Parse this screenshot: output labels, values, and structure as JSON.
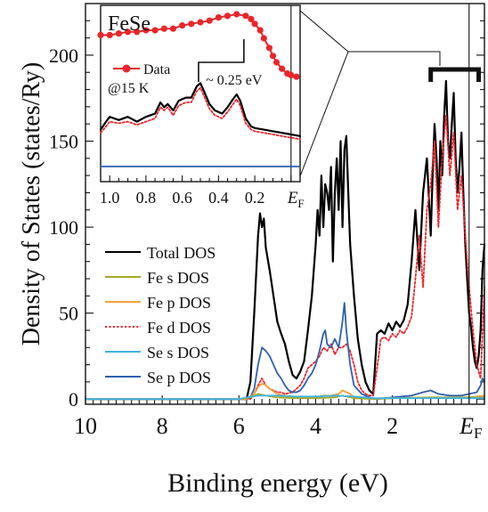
{
  "chart_data": [
    {
      "type": "line",
      "xlabel": "Binding energy (eV)",
      "ylabel": "Density of States (states/Ry)",
      "xlim": [
        10,
        -0.4
      ],
      "ylim": [
        -3,
        230
      ],
      "x_reversed": true,
      "x_ticks": [
        10,
        8,
        6,
        4,
        2
      ],
      "y_ticks": [
        0,
        50,
        100,
        150,
        200
      ],
      "fermi_label": "E",
      "fermi_sub": "F",
      "fermi_x": 0,
      "fermi_bar_range": [
        1.0,
        -0.25
      ],
      "legend": [
        {
          "label": "Total DOS",
          "color": "#000000",
          "style": "solid"
        },
        {
          "label": "Fe s DOS",
          "color": "#a6a829",
          "style": "solid"
        },
        {
          "label": "Fe p DOS",
          "color": "#f2a13a",
          "style": "solid"
        },
        {
          "label": "Fe d DOS",
          "color": "#e8262c",
          "style": "dotted"
        },
        {
          "label": "Se s DOS",
          "color": "#3fb4e2",
          "style": "solid"
        },
        {
          "label": "Se p DOS",
          "color": "#2e5fae",
          "style": "solid"
        }
      ],
      "series": [
        {
          "name": "Total DOS",
          "color": "#000000",
          "style": "solid",
          "x": [
            10,
            6.0,
            5.9,
            5.8,
            5.7,
            5.6,
            5.5,
            5.45,
            5.4,
            5.35,
            5.3,
            5.2,
            5.1,
            5.0,
            4.9,
            4.8,
            4.7,
            4.6,
            4.5,
            4.4,
            4.3,
            4.2,
            4.1,
            4.0,
            3.95,
            3.9,
            3.85,
            3.8,
            3.75,
            3.7,
            3.65,
            3.6,
            3.55,
            3.5,
            3.45,
            3.4,
            3.35,
            3.3,
            3.25,
            3.2,
            3.15,
            3.1,
            3.0,
            2.9,
            2.8,
            2.7,
            2.6,
            2.5,
            2.45,
            2.4,
            2.3,
            2.2,
            2.1,
            2.0,
            1.9,
            1.8,
            1.7,
            1.6,
            1.5,
            1.4,
            1.3,
            1.2,
            1.1,
            1.0,
            0.95,
            0.9,
            0.85,
            0.8,
            0.75,
            0.7,
            0.65,
            0.6,
            0.55,
            0.5,
            0.45,
            0.4,
            0.35,
            0.3,
            0.25,
            0.2,
            0.15,
            0.1,
            0.05,
            0.0,
            -0.05,
            -0.1,
            -0.15,
            -0.2,
            -0.25,
            -0.3,
            -0.35,
            -0.4
          ],
          "y": [
            0,
            0,
            0,
            0,
            10,
            50,
            95,
            108,
            100,
            105,
            88,
            75,
            60,
            45,
            38,
            32,
            22,
            14,
            12,
            16,
            22,
            40,
            60,
            90,
            110,
            95,
            130,
            100,
            125,
            120,
            110,
            135,
            80,
            120,
            140,
            110,
            150,
            100,
            145,
            153,
            120,
            90,
            60,
            35,
            20,
            10,
            5,
            3,
            20,
            38,
            40,
            38,
            44,
            40,
            45,
            42,
            46,
            55,
            80,
            110,
            75,
            120,
            140,
            95,
            130,
            160,
            140,
            110,
            150,
            130,
            165,
            185,
            150,
            140,
            160,
            178,
            140,
            120,
            135,
            155,
            120,
            90,
            70,
            50,
            42,
            30,
            22,
            18,
            25,
            40,
            75,
            90
          ]
        },
        {
          "name": "Fe d DOS",
          "color": "#e8262c",
          "style": "dotted",
          "x": [
            10,
            6.0,
            5.7,
            5.6,
            5.5,
            5.4,
            5.3,
            5.2,
            5.0,
            4.9,
            4.8,
            4.6,
            4.4,
            4.3,
            4.2,
            4.1,
            4.0,
            3.9,
            3.8,
            3.7,
            3.6,
            3.5,
            3.4,
            3.3,
            3.2,
            3.1,
            3.0,
            2.9,
            2.8,
            2.7,
            2.6,
            2.5,
            2.4,
            2.3,
            2.2,
            2.1,
            2.0,
            1.9,
            1.8,
            1.7,
            1.6,
            1.5,
            1.4,
            1.3,
            1.2,
            1.1,
            1.0,
            0.9,
            0.8,
            0.7,
            0.6,
            0.5,
            0.4,
            0.3,
            0.2,
            0.1,
            0.0,
            -0.1,
            -0.2,
            -0.3,
            -0.4
          ],
          "y": [
            0,
            0,
            0,
            3,
            8,
            12,
            8,
            6,
            4,
            4,
            3,
            4,
            8,
            12,
            18,
            20,
            22,
            25,
            30,
            28,
            32,
            26,
            30,
            30,
            32,
            28,
            20,
            10,
            5,
            3,
            2,
            2,
            18,
            35,
            36,
            34,
            38,
            36,
            40,
            38,
            42,
            48,
            70,
            95,
            65,
            110,
            125,
            150,
            100,
            140,
            165,
            130,
            155,
            110,
            130,
            95,
            65,
            40,
            20,
            12,
            65
          ]
        },
        {
          "name": "Se p DOS",
          "color": "#2e5fae",
          "style": "solid",
          "x": [
            10,
            6.0,
            5.8,
            5.7,
            5.6,
            5.5,
            5.4,
            5.3,
            5.2,
            5.1,
            5.0,
            4.9,
            4.8,
            4.7,
            4.6,
            4.5,
            4.4,
            4.3,
            4.2,
            4.1,
            4.0,
            3.9,
            3.8,
            3.75,
            3.7,
            3.6,
            3.5,
            3.4,
            3.3,
            3.25,
            3.2,
            3.1,
            3.0,
            2.8,
            2.6,
            2.4,
            2.0,
            1.5,
            1.2,
            1.0,
            0.8,
            0.5,
            0.2,
            0.0,
            -0.2,
            -0.3,
            -0.35,
            -0.4
          ],
          "y": [
            0,
            0,
            0,
            1,
            6,
            20,
            30,
            28,
            25,
            20,
            15,
            12,
            8,
            5,
            4,
            4,
            5,
            8,
            12,
            15,
            20,
            28,
            38,
            40,
            32,
            30,
            35,
            30,
            45,
            56,
            40,
            20,
            8,
            3,
            1,
            0,
            1,
            2,
            4,
            5,
            3,
            2,
            2,
            3,
            4,
            8,
            12,
            10
          ]
        },
        {
          "name": "Fe p DOS",
          "color": "#f2a13a",
          "style": "solid",
          "x": [
            10,
            6.0,
            5.8,
            5.6,
            5.5,
            5.4,
            5.3,
            5.2,
            5.0,
            4.8,
            4.6,
            4.4,
            4.2,
            4.0,
            3.8,
            3.6,
            3.4,
            3.3,
            3.2,
            3.1,
            3.0,
            2.8,
            2.5,
            2.0,
            1.0,
            0.0,
            -0.4
          ],
          "y": [
            0,
            0,
            0,
            3,
            7,
            9,
            8,
            6,
            3,
            2,
            1,
            1,
            1,
            1,
            2,
            2,
            3,
            5,
            4,
            3,
            1,
            0.5,
            0,
            0.5,
            1,
            1,
            2
          ]
        },
        {
          "name": "Fe s DOS",
          "color": "#a6a829",
          "style": "solid",
          "x": [
            10,
            6.0,
            5.7,
            5.5,
            5.3,
            5.0,
            4.5,
            4.0,
            3.5,
            3.3,
            3.0,
            2.5,
            2.0,
            1.0,
            0.0,
            -0.4
          ],
          "y": [
            0,
            0,
            1,
            3,
            2,
            1,
            0.5,
            0.5,
            1,
            2,
            0.5,
            0,
            0.5,
            1,
            1,
            1
          ]
        },
        {
          "name": "Se s DOS",
          "color": "#3fb4e2",
          "style": "solid",
          "x": [
            10,
            6.0,
            5.8,
            5.5,
            5.0,
            4.5,
            4.0,
            3.5,
            3.0,
            2.5,
            2.0,
            1.0,
            0.0,
            -0.4
          ],
          "y": [
            0,
            0,
            1,
            2,
            2,
            1.5,
            1.5,
            2,
            1.5,
            0.5,
            0.5,
            0.5,
            0.5,
            0.5
          ]
        }
      ]
    },
    {
      "type": "line",
      "title": "FeSe",
      "xlim": [
        1.05,
        -0.05
      ],
      "ylim": [
        0,
        1
      ],
      "x_reversed": true,
      "x_ticks": [
        1.0,
        0.8,
        0.6,
        0.4,
        0.2
      ],
      "x_tick_labels": [
        "1.0",
        "0.8",
        "0.6",
        "0.4",
        "0.2"
      ],
      "fermi_label": "E",
      "fermi_sub": "F",
      "fermi_x": 0,
      "annotation": "~ 0.25 eV",
      "legend_data_label": "Data",
      "legend_data_sub": "@15 K",
      "series": [
        {
          "name": "Data",
          "color": "#e8262c",
          "style": "markers",
          "x": [
            1.05,
            1.0,
            0.95,
            0.9,
            0.85,
            0.8,
            0.75,
            0.7,
            0.65,
            0.6,
            0.55,
            0.5,
            0.45,
            0.4,
            0.35,
            0.3,
            0.25,
            0.22,
            0.2,
            0.17,
            0.15,
            0.12,
            0.1,
            0.08,
            0.05,
            0.02,
            0.0,
            -0.03
          ],
          "y": [
            0.87,
            0.87,
            0.88,
            0.89,
            0.89,
            0.9,
            0.9,
            0.91,
            0.91,
            0.93,
            0.94,
            0.95,
            0.96,
            0.98,
            0.99,
            1.0,
            0.99,
            0.97,
            0.94,
            0.9,
            0.85,
            0.79,
            0.74,
            0.7,
            0.66,
            0.63,
            0.62,
            0.61
          ]
        },
        {
          "name": "Total DOS",
          "color": "#000000",
          "style": "solid",
          "x": [
            1.05,
            1.02,
            1.0,
            0.95,
            0.9,
            0.85,
            0.8,
            0.75,
            0.72,
            0.7,
            0.68,
            0.65,
            0.62,
            0.6,
            0.58,
            0.55,
            0.52,
            0.5,
            0.48,
            0.45,
            0.42,
            0.4,
            0.38,
            0.35,
            0.32,
            0.3,
            0.28,
            0.25,
            0.22,
            0.2,
            0.15,
            0.1,
            0.05,
            0.0,
            -0.05
          ],
          "y": [
            0.28,
            0.33,
            0.36,
            0.34,
            0.36,
            0.33,
            0.36,
            0.38,
            0.45,
            0.42,
            0.44,
            0.4,
            0.46,
            0.47,
            0.48,
            0.48,
            0.55,
            0.57,
            0.52,
            0.44,
            0.4,
            0.39,
            0.38,
            0.42,
            0.47,
            0.5,
            0.46,
            0.35,
            0.3,
            0.29,
            0.28,
            0.27,
            0.26,
            0.25,
            0.24
          ]
        },
        {
          "name": "Fe d DOS",
          "color": "#e8262c",
          "style": "dotted",
          "x": [
            1.05,
            1.02,
            1.0,
            0.95,
            0.9,
            0.85,
            0.8,
            0.75,
            0.72,
            0.7,
            0.68,
            0.65,
            0.62,
            0.6,
            0.58,
            0.55,
            0.52,
            0.5,
            0.48,
            0.45,
            0.42,
            0.4,
            0.38,
            0.35,
            0.32,
            0.3,
            0.28,
            0.25,
            0.22,
            0.2,
            0.15,
            0.1,
            0.05,
            0.0,
            -0.05
          ],
          "y": [
            0.26,
            0.3,
            0.33,
            0.32,
            0.33,
            0.31,
            0.33,
            0.35,
            0.42,
            0.4,
            0.42,
            0.37,
            0.43,
            0.44,
            0.45,
            0.45,
            0.52,
            0.54,
            0.49,
            0.41,
            0.37,
            0.36,
            0.35,
            0.39,
            0.44,
            0.47,
            0.43,
            0.32,
            0.28,
            0.27,
            0.26,
            0.25,
            0.24,
            0.23,
            0.22
          ]
        },
        {
          "name": "Se p DOS",
          "color": "#2e5fae",
          "style": "solid",
          "x": [
            1.05,
            0.5,
            0.0,
            -0.05
          ],
          "y": [
            0.05,
            0.05,
            0.05,
            0.05
          ]
        }
      ]
    }
  ]
}
